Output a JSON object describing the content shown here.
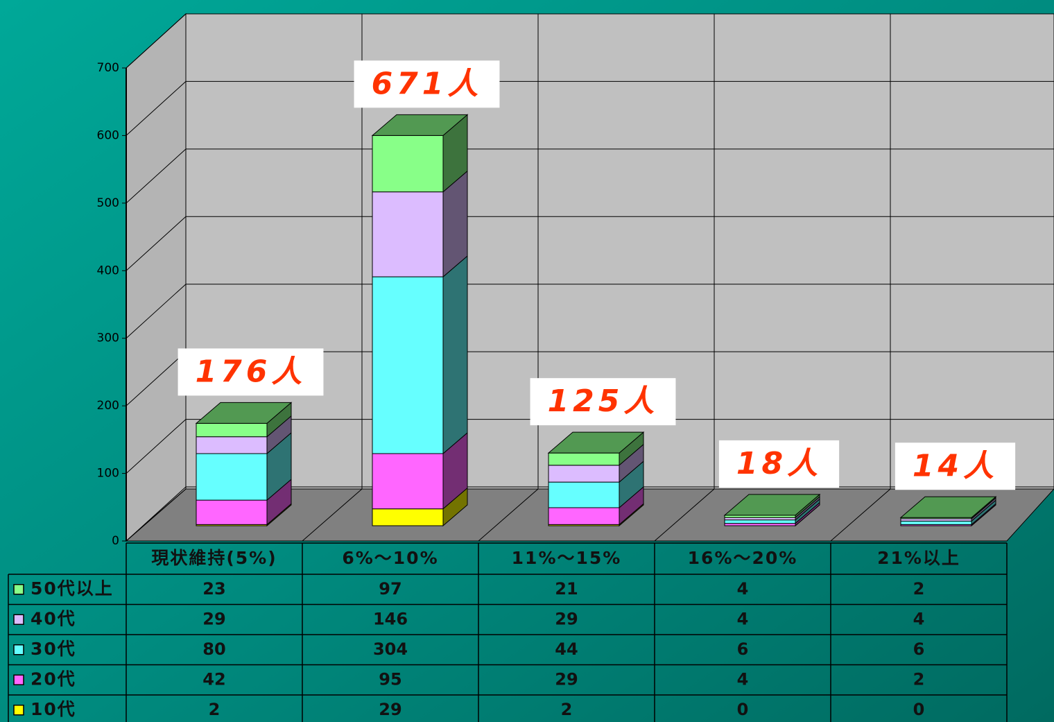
{
  "chart_data": {
    "type": "bar3d_stacked",
    "categories": [
      "現状維持(5%)",
      "6%～10%",
      "11%～15%",
      "16%～20%",
      "21%以上"
    ],
    "series": [
      {
        "name": "10代",
        "color": "#ffff00",
        "values": [
          2,
          29,
          2,
          0,
          0
        ]
      },
      {
        "name": "20代",
        "color": "#ff66ff",
        "values": [
          42,
          95,
          29,
          4,
          2
        ]
      },
      {
        "name": "30代",
        "color": "#66ffff",
        "values": [
          80,
          304,
          44,
          6,
          6
        ]
      },
      {
        "name": "40代",
        "color": "#dcbcff",
        "values": [
          29,
          146,
          29,
          4,
          4
        ]
      },
      {
        "name": "50代以上",
        "color": "#88ff88",
        "values": [
          23,
          97,
          21,
          4,
          2
        ]
      }
    ],
    "annotations": [
      "176人",
      "671人",
      "125人",
      "18人",
      "14人"
    ],
    "ylim": [
      0,
      700
    ],
    "yticks": [
      0,
      100,
      200,
      300,
      400,
      500,
      600,
      700
    ],
    "grid": true
  }
}
